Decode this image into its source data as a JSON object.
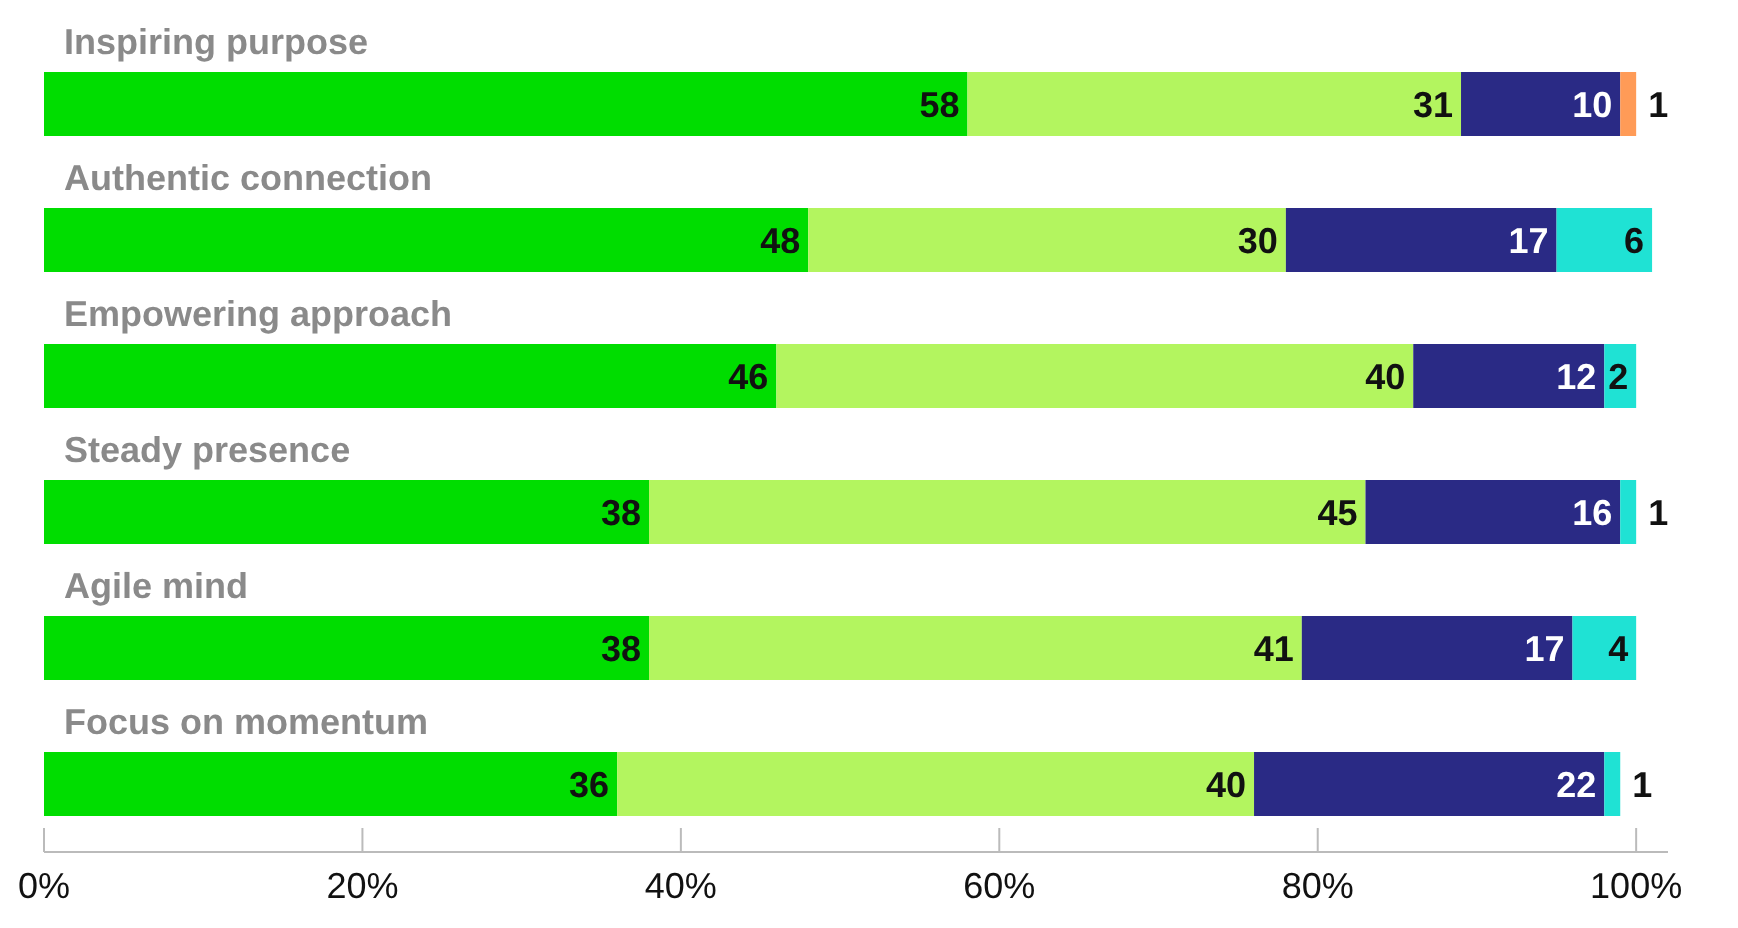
{
  "chart_data": {
    "type": "bar",
    "orientation": "horizontal",
    "stacked": true,
    "data_labels": true,
    "tick_labels": "x",
    "grid": false,
    "categories": [
      "Inspiring purpose",
      "Authentic connection",
      "Empowering approach",
      "Steady presence",
      "Agile mind",
      "Focus on momentum"
    ],
    "series": [
      {
        "color": "#00dd00",
        "values": [
          58,
          48,
          46,
          38,
          38,
          36
        ]
      },
      {
        "color": "#b3f55f",
        "values": [
          31,
          30,
          40,
          45,
          41,
          40
        ]
      },
      {
        "color": "#2a2a85",
        "values": [
          10,
          17,
          12,
          16,
          17,
          22
        ]
      },
      {
        "color": "#1fe2d4",
        "colors": [
          "#ff9b57",
          "#1fe2d4",
          "#1fe2d4",
          "#1fe2d4",
          "#1fe2d4",
          "#1fe2d4"
        ],
        "values": [
          1,
          6,
          2,
          1,
          4,
          1
        ]
      }
    ],
    "xlim": [
      0,
      102
    ],
    "xticks": [
      {
        "value": 0,
        "label": "0%"
      },
      {
        "value": 20,
        "label": "20%"
      },
      {
        "value": 40,
        "label": "40%"
      },
      {
        "value": 60,
        "label": "60%"
      },
      {
        "value": 80,
        "label": "80%"
      },
      {
        "value": 100,
        "label": "100%"
      }
    ]
  }
}
